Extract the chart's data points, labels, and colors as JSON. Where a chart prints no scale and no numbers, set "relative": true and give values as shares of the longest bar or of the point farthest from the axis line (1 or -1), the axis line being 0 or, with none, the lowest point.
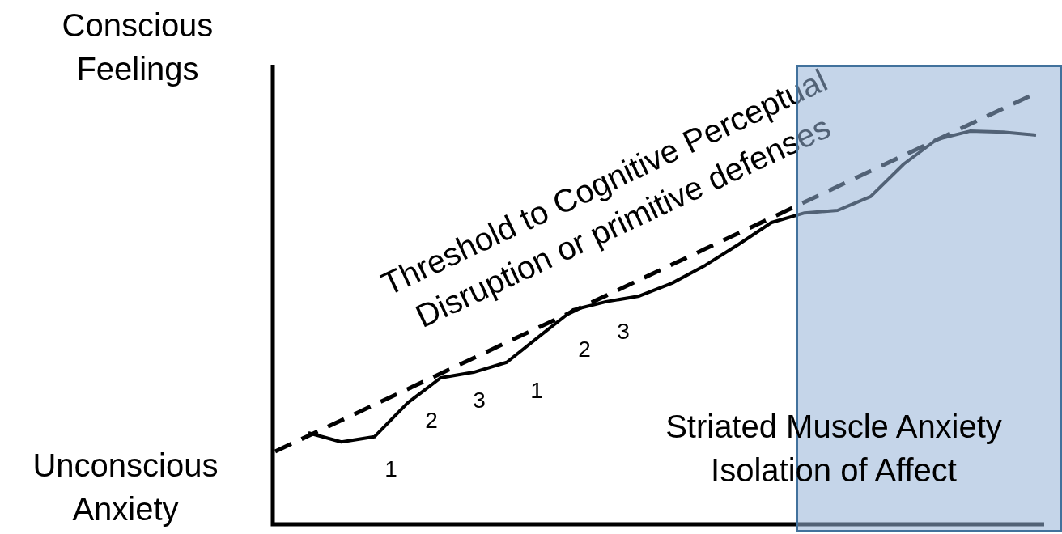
{
  "chart_data": {
    "type": "line",
    "relative": true,
    "categories": [
      null,
      null,
      null,
      null,
      null,
      null,
      null,
      null,
      null,
      null,
      null,
      null,
      null,
      null,
      null,
      null,
      null,
      null,
      null,
      null,
      null,
      null,
      null,
      null
    ],
    "legend": false,
    "marker": "none",
    "series": [
      {
        "name": "Threshold to Cognitive Perceptual\nDisruption or primitive defenses",
        "color": "#000000",
        "line_style": "dashed",
        "values": [
          0.172,
          0.208,
          0.244,
          0.28,
          0.316,
          0.352,
          0.388,
          0.424,
          0.46,
          0.496,
          0.532,
          0.568,
          0.604,
          0.64,
          0.676,
          0.712,
          0.748,
          0.784,
          0.82,
          0.856,
          0.892,
          0.928,
          0.964,
          1
        ]
      },
      {
        "color": "#000000",
        "line_style": "solid",
        "values": [
          null,
          0.215,
          0.194,
          0.206,
          0.284,
          0.342,
          0.355,
          0.378,
          0.439,
          0.499,
          0.518,
          0.531,
          0.561,
          0.602,
          0.65,
          0.701,
          0.723,
          0.729,
          0.761,
          0.836,
          0.893,
          0.912,
          0.91,
          0.903
        ]
      }
    ],
    "annotations": [
      "Conscious\nFeelings",
      "Unconscious\nAnxiety",
      "Striated Muscle Anxiety\nIsolation of Affect",
      "1",
      "2",
      "3",
      "1",
      "2",
      "3"
    ]
  }
}
